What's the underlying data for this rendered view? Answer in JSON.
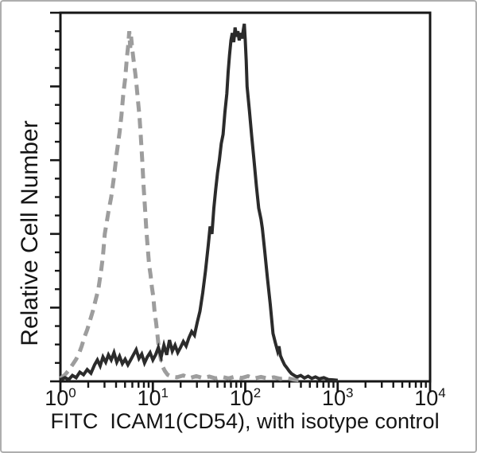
{
  "figure": {
    "background": "#ffffff",
    "border_color": "#aeaeae"
  },
  "chart_data": {
    "type": "line",
    "subtype": "flow-cytometry-histogram",
    "title": "",
    "xlabel": "FITC  ICAM1(CD54), with isotype control",
    "ylabel": "Relative Cell Number",
    "x_scale": "log10",
    "x_range": [
      1,
      10000
    ],
    "y_range_fraction": [
      0,
      1
    ],
    "grid": false,
    "legend": "none",
    "axis_color": "#161616",
    "x_tick_base": "10",
    "x_tick_exponents": [
      0,
      1,
      2,
      3,
      4
    ],
    "x_minor_tick_multiples": [
      2,
      3,
      4,
      5,
      6,
      7,
      8,
      9
    ],
    "y_axis": {
      "major_divisions": 5,
      "minor_ticks_per_major": 3,
      "tick_labels_visible": false
    },
    "series": [
      {
        "name": "isotype control",
        "line_style": "dashed",
        "color": "#9d9d9d",
        "stroke_width": 5,
        "dash_pattern": [
          13,
          8
        ],
        "peak_x_log10": 0.745,
        "peak_height_fraction": 0.95,
        "points": [
          [
            0.0,
            0.008
          ],
          [
            0.05,
            0.018
          ],
          [
            0.09,
            0.03
          ],
          [
            0.13,
            0.045
          ],
          [
            0.17,
            0.06
          ],
          [
            0.2,
            0.075
          ],
          [
            0.23,
            0.095
          ],
          [
            0.26,
            0.12
          ],
          [
            0.29,
            0.14
          ],
          [
            0.32,
            0.165
          ],
          [
            0.35,
            0.19
          ],
          [
            0.38,
            0.22
          ],
          [
            0.41,
            0.25
          ],
          [
            0.44,
            0.3
          ],
          [
            0.46,
            0.34
          ],
          [
            0.48,
            0.4
          ],
          [
            0.5,
            0.43
          ],
          [
            0.52,
            0.46
          ],
          [
            0.55,
            0.5
          ],
          [
            0.58,
            0.555
          ],
          [
            0.61,
            0.62
          ],
          [
            0.64,
            0.675
          ],
          [
            0.66,
            0.72
          ],
          [
            0.68,
            0.78
          ],
          [
            0.7,
            0.82
          ],
          [
            0.72,
            0.88
          ],
          [
            0.735,
            0.915
          ],
          [
            0.745,
            0.95
          ],
          [
            0.755,
            0.905
          ],
          [
            0.765,
            0.935
          ],
          [
            0.78,
            0.895
          ],
          [
            0.795,
            0.865
          ],
          [
            0.81,
            0.835
          ],
          [
            0.825,
            0.8
          ],
          [
            0.84,
            0.76
          ],
          [
            0.855,
            0.72
          ],
          [
            0.87,
            0.665
          ],
          [
            0.885,
            0.6
          ],
          [
            0.9,
            0.53
          ],
          [
            0.915,
            0.47
          ],
          [
            0.93,
            0.41
          ],
          [
            0.945,
            0.36
          ],
          [
            0.96,
            0.315
          ],
          [
            0.975,
            0.29
          ],
          [
            0.99,
            0.255
          ],
          [
            1.005,
            0.23
          ],
          [
            1.02,
            0.185
          ],
          [
            1.035,
            0.16
          ],
          [
            1.05,
            0.125
          ],
          [
            1.065,
            0.09
          ],
          [
            1.08,
            0.068
          ],
          [
            1.095,
            0.05
          ],
          [
            1.11,
            0.038
          ],
          [
            1.13,
            0.028
          ],
          [
            1.16,
            0.018
          ],
          [
            1.2,
            0.013
          ],
          [
            1.26,
            0.011
          ],
          [
            1.33,
            0.016
          ],
          [
            1.4,
            0.009
          ],
          [
            1.47,
            0.014
          ],
          [
            1.54,
            0.009
          ],
          [
            1.61,
            0.013
          ],
          [
            1.68,
            0.008
          ],
          [
            1.75,
            0.012
          ],
          [
            1.82,
            0.008
          ],
          [
            1.89,
            0.013
          ],
          [
            1.96,
            0.009
          ],
          [
            2.03,
            0.014
          ],
          [
            2.1,
            0.008
          ],
          [
            2.17,
            0.012
          ],
          [
            2.24,
            0.008
          ],
          [
            2.31,
            0.011
          ],
          [
            2.38,
            0.007
          ],
          [
            2.45,
            0.009
          ],
          [
            2.52,
            0.005
          ],
          [
            2.58,
            0.003
          ]
        ]
      },
      {
        "name": "ICAM1(CD54) FITC",
        "line_style": "solid",
        "color": "#2b2b2b",
        "stroke_width": 4,
        "peak_x_log10": 1.99,
        "peak_height_fraction": 0.97,
        "points": [
          [
            0.0,
            0.004
          ],
          [
            0.05,
            0.01
          ],
          [
            0.09,
            0.005
          ],
          [
            0.13,
            0.016
          ],
          [
            0.17,
            0.01
          ],
          [
            0.21,
            0.025
          ],
          [
            0.25,
            0.018
          ],
          [
            0.29,
            0.032
          ],
          [
            0.33,
            0.022
          ],
          [
            0.37,
            0.045
          ],
          [
            0.4,
            0.058
          ],
          [
            0.43,
            0.042
          ],
          [
            0.46,
            0.066
          ],
          [
            0.49,
            0.052
          ],
          [
            0.52,
            0.072
          ],
          [
            0.55,
            0.058
          ],
          [
            0.58,
            0.078
          ],
          [
            0.61,
            0.052
          ],
          [
            0.64,
            0.068
          ],
          [
            0.67,
            0.048
          ],
          [
            0.7,
            0.06
          ],
          [
            0.73,
            0.045
          ],
          [
            0.76,
            0.058
          ],
          [
            0.79,
            0.072
          ],
          [
            0.82,
            0.086
          ],
          [
            0.85,
            0.062
          ],
          [
            0.88,
            0.074
          ],
          [
            0.91,
            0.05
          ],
          [
            0.94,
            0.066
          ],
          [
            0.97,
            0.078
          ],
          [
            1.0,
            0.058
          ],
          [
            1.03,
            0.072
          ],
          [
            1.06,
            0.092
          ],
          [
            1.09,
            0.066
          ],
          [
            1.12,
            0.098
          ],
          [
            1.15,
            0.072
          ],
          [
            1.18,
            0.112
          ],
          [
            1.21,
            0.082
          ],
          [
            1.24,
            0.098
          ],
          [
            1.27,
            0.078
          ],
          [
            1.3,
            0.092
          ],
          [
            1.33,
            0.108
          ],
          [
            1.36,
            0.096
          ],
          [
            1.39,
            0.118
          ],
          [
            1.42,
            0.135
          ],
          [
            1.45,
            0.125
          ],
          [
            1.48,
            0.16
          ],
          [
            1.51,
            0.19
          ],
          [
            1.54,
            0.24
          ],
          [
            1.57,
            0.3
          ],
          [
            1.6,
            0.37
          ],
          [
            1.62,
            0.42
          ],
          [
            1.64,
            0.4
          ],
          [
            1.66,
            0.47
          ],
          [
            1.68,
            0.52
          ],
          [
            1.7,
            0.565
          ],
          [
            1.72,
            0.6
          ],
          [
            1.74,
            0.645
          ],
          [
            1.76,
            0.67
          ],
          [
            1.78,
            0.73
          ],
          [
            1.8,
            0.78
          ],
          [
            1.815,
            0.84
          ],
          [
            1.83,
            0.885
          ],
          [
            1.845,
            0.925
          ],
          [
            1.86,
            0.945
          ],
          [
            1.875,
            0.92
          ],
          [
            1.89,
            0.96
          ],
          [
            1.905,
            0.935
          ],
          [
            1.92,
            0.95
          ],
          [
            1.935,
            0.925
          ],
          [
            1.95,
            0.945
          ],
          [
            1.965,
            0.93
          ],
          [
            1.98,
            0.955
          ],
          [
            1.99,
            0.97
          ],
          [
            2.0,
            0.925
          ],
          [
            2.01,
            0.87
          ],
          [
            2.02,
            0.8
          ],
          [
            2.045,
            0.735
          ],
          [
            2.07,
            0.665
          ],
          [
            2.095,
            0.6
          ],
          [
            2.12,
            0.53
          ],
          [
            2.145,
            0.47
          ],
          [
            2.17,
            0.44
          ],
          [
            2.185,
            0.415
          ],
          [
            2.21,
            0.355
          ],
          [
            2.24,
            0.28
          ],
          [
            2.27,
            0.21
          ],
          [
            2.3,
            0.13
          ],
          [
            2.325,
            0.105
          ],
          [
            2.35,
            0.082
          ],
          [
            2.365,
            0.095
          ],
          [
            2.38,
            0.07
          ],
          [
            2.4,
            0.058
          ],
          [
            2.425,
            0.045
          ],
          [
            2.45,
            0.037
          ],
          [
            2.475,
            0.028
          ],
          [
            2.5,
            0.021
          ],
          [
            2.53,
            0.016
          ],
          [
            2.56,
            0.012
          ],
          [
            2.6,
            0.016
          ],
          [
            2.64,
            0.009
          ],
          [
            2.68,
            0.014
          ],
          [
            2.72,
            0.008
          ],
          [
            2.76,
            0.012
          ],
          [
            2.8,
            0.007
          ],
          [
            2.85,
            0.01
          ],
          [
            2.9,
            0.005
          ],
          [
            2.95,
            0.004
          ],
          [
            3.0,
            0.003
          ]
        ]
      }
    ]
  }
}
